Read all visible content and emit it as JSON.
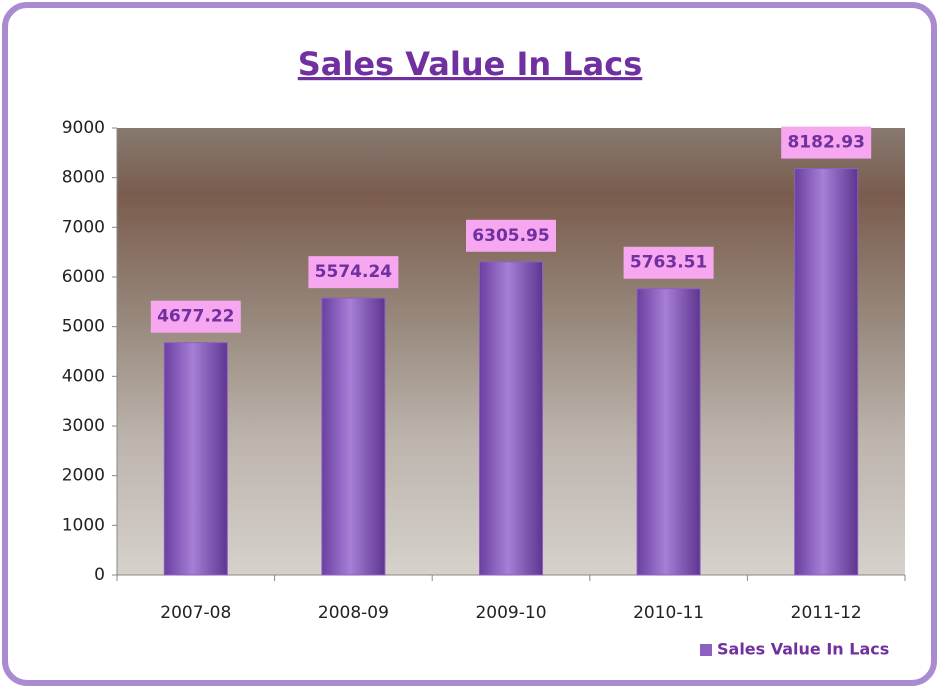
{
  "chart_data": {
    "type": "bar",
    "title": "Sales Value In Lacs",
    "categories": [
      "2007-08",
      "2008-09",
      "2009-10",
      "2010-11",
      "2011-12"
    ],
    "series": [
      {
        "name": "Sales Value In Lacs",
        "color": "#8c5fc0",
        "values": [
          4677.22,
          5574.24,
          6305.95,
          5763.51,
          8182.93
        ]
      }
    ],
    "ylim": [
      0,
      9000
    ],
    "yticks": [
      0,
      1000,
      2000,
      3000,
      4000,
      5000,
      6000,
      7000,
      8000,
      9000
    ],
    "grid": false,
    "legend": "bottom-right"
  }
}
